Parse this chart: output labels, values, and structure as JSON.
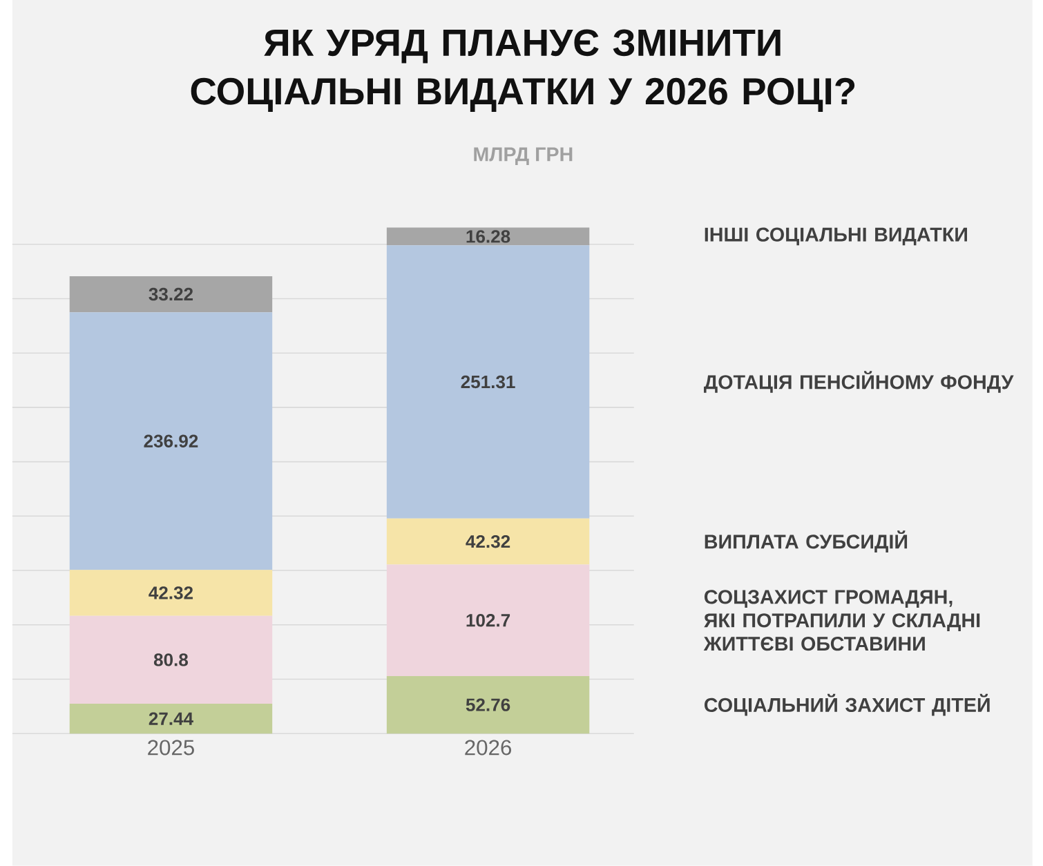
{
  "chart_data": {
    "type": "bar",
    "stacked": true,
    "title": "ЯК УРЯД ПЛАНУЄ ЗМІНИТИ СОЦІАЛЬНІ ВИДАТКИ У 2026 РОЦІ?",
    "subtitle": "МЛРД ГРН",
    "categories": [
      "2025",
      "2026"
    ],
    "series": [
      {
        "name": "СОЦІАЛЬНИЙ ЗАХИСТ ДІТЕЙ",
        "color": "#c3cf98",
        "values": [
          27.44,
          52.76
        ]
      },
      {
        "name": "СОЦЗАХИСТ ГРОМАДЯН, ЯКІ ПОТРАПИЛИ У СКЛАДНІ ЖИТТЄВІ ОБСТАВИНИ",
        "color": "#efd5dd",
        "values": [
          80.8,
          102.7
        ]
      },
      {
        "name": "ВИПЛАТА СУБСИДІЙ",
        "color": "#f6e4a8",
        "values": [
          42.32,
          42.32
        ]
      },
      {
        "name": "ДОТАЦІЯ ПЕНСІЙНОМУ ФОНДУ",
        "color": "#b4c7e0",
        "values": [
          236.92,
          251.31
        ]
      },
      {
        "name": "ІНШІ СОЦІАЛЬНІ ВИДАТКИ",
        "color": "#a6a6a6",
        "values": [
          33.22,
          16.28
        ]
      }
    ],
    "grid": "y",
    "tick_labels": "x",
    "data_labels": true
  }
}
